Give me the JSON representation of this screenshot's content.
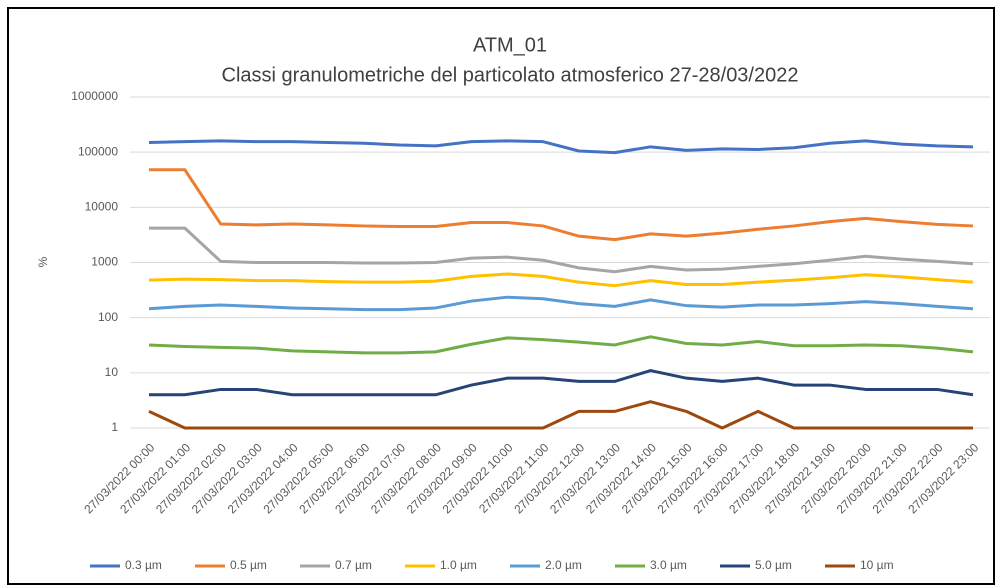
{
  "chart_data": {
    "type": "line",
    "title": "ATM_01",
    "subtitle": "Classi granulometriche del particolato atmosferico 27-28/03/2022",
    "y_label": "%",
    "log_scale": true,
    "grid": true,
    "legend_position": "bottom",
    "categories": [
      "27/03/2022 00:00",
      "27/03/2022 01:00",
      "27/03/2022 02:00",
      "27/03/2022 03:00",
      "27/03/2022 04:00",
      "27/03/2022 05:00",
      "27/03/2022 06:00",
      "27/03/2022 07:00",
      "27/03/2022 08:00",
      "27/03/2022 09:00",
      "27/03/2022 10:00",
      "27/03/2022 11:00",
      "27/03/2022 12:00",
      "27/03/2022 13:00",
      "27/03/2022 14:00",
      "27/03/2022 15:00",
      "27/03/2022 16:00",
      "27/03/2022 17:00",
      "27/03/2022 18:00",
      "27/03/2022 19:00",
      "27/03/2022 20:00",
      "27/03/2022 21:00",
      "27/03/2022 22:00",
      "27/03/2022 23:00"
    ],
    "ylim": [
      1,
      1000000
    ],
    "yticks": [
      1,
      10,
      100,
      1000,
      10000,
      100000,
      1000000
    ],
    "series": [
      {
        "name": "0.3 µm",
        "color": "#4472c4",
        "values": [
          150000,
          155000,
          160000,
          155000,
          155000,
          150000,
          145000,
          135000,
          130000,
          155000,
          160000,
          155000,
          105000,
          98000,
          125000,
          108000,
          115000,
          112000,
          120000,
          145000,
          160000,
          140000,
          130000,
          125000
        ]
      },
      {
        "name": "0.5 µm",
        "color": "#ed7d31",
        "values": [
          48000,
          48000,
          5000,
          4800,
          5000,
          4800,
          4600,
          4500,
          4500,
          5300,
          5300,
          4600,
          3000,
          2600,
          3300,
          3000,
          3400,
          4000,
          4600,
          5500,
          6300,
          5500,
          4900,
          4600
        ]
      },
      {
        "name": "0.7 µm",
        "color": "#a5a5a5",
        "values": [
          4200,
          4200,
          1050,
          1000,
          1000,
          1000,
          980,
          980,
          1000,
          1200,
          1250,
          1100,
          800,
          680,
          850,
          730,
          760,
          850,
          950,
          1100,
          1300,
          1150,
          1050,
          950
        ]
      },
      {
        "name": "1.0 µm",
        "color": "#ffc000",
        "values": [
          480,
          500,
          490,
          470,
          470,
          450,
          440,
          440,
          460,
          560,
          620,
          560,
          440,
          380,
          470,
          400,
          400,
          440,
          480,
          530,
          600,
          550,
          490,
          440
        ]
      },
      {
        "name": "2.0 µm",
        "color": "#5b9bd5",
        "values": [
          145,
          160,
          170,
          160,
          150,
          145,
          140,
          140,
          150,
          200,
          235,
          220,
          180,
          160,
          210,
          165,
          155,
          170,
          170,
          180,
          195,
          180,
          160,
          145
        ]
      },
      {
        "name": "3.0 µm",
        "color": "#70ad47",
        "values": [
          32,
          30,
          29,
          28,
          25,
          24,
          23,
          23,
          24,
          33,
          43,
          40,
          36,
          32,
          45,
          34,
          32,
          37,
          31,
          31,
          32,
          31,
          28,
          24
        ]
      },
      {
        "name": "5.0 µm",
        "color": "#264478",
        "values": [
          4,
          4,
          5,
          5,
          4,
          4,
          4,
          4,
          4,
          6,
          8,
          8,
          7,
          7,
          11,
          8,
          7,
          8,
          6,
          6,
          5,
          5,
          5,
          4
        ]
      },
      {
        "name": "10 µm",
        "color": "#9e480e",
        "values": [
          2,
          1,
          1,
          1,
          1,
          1,
          1,
          1,
          1,
          1,
          1,
          1,
          2,
          2,
          3,
          2,
          1,
          2,
          1,
          1,
          1,
          1,
          1,
          1
        ]
      }
    ]
  }
}
